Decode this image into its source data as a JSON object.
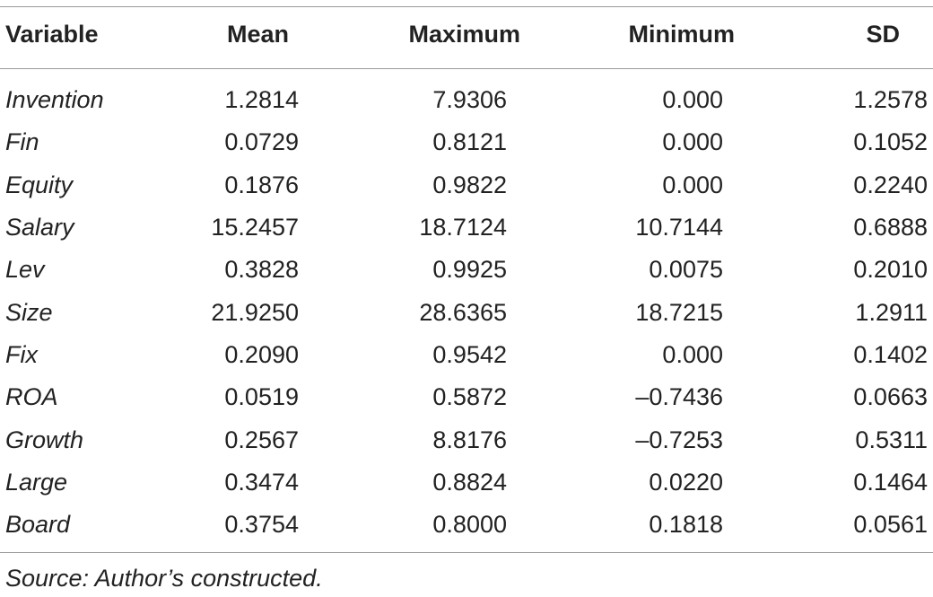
{
  "table": {
    "headers": {
      "variable": "Variable",
      "mean": "Mean",
      "maximum": "Maximum",
      "minimum": "Minimum",
      "sd": "SD"
    },
    "rows": [
      {
        "variable": "Invention",
        "mean": "1.2814",
        "maximum": "7.9306",
        "minimum": "0.000",
        "sd": "1.2578"
      },
      {
        "variable": "Fin",
        "mean": "0.0729",
        "maximum": "0.8121",
        "minimum": "0.000",
        "sd": "0.1052"
      },
      {
        "variable": "Equity",
        "mean": "0.1876",
        "maximum": "0.9822",
        "minimum": "0.000",
        "sd": "0.2240"
      },
      {
        "variable": "Salary",
        "mean": "15.2457",
        "maximum": "18.7124",
        "minimum": "10.7144",
        "sd": "0.6888"
      },
      {
        "variable": "Lev",
        "mean": "0.3828",
        "maximum": "0.9925",
        "minimum": "0.0075",
        "sd": "0.2010"
      },
      {
        "variable": "Size",
        "mean": "21.9250",
        "maximum": "28.6365",
        "minimum": "18.7215",
        "sd": "1.2911"
      },
      {
        "variable": "Fix",
        "mean": "0.2090",
        "maximum": "0.9542",
        "minimum": "0.000",
        "sd": "0.1402"
      },
      {
        "variable": "ROA",
        "mean": "0.0519",
        "maximum": "0.5872",
        "minimum": "–0.7436",
        "sd": "0.0663"
      },
      {
        "variable": "Growth",
        "mean": "0.2567",
        "maximum": "8.8176",
        "minimum": "–0.7253",
        "sd": "0.5311"
      },
      {
        "variable": "Large",
        "mean": "0.3474",
        "maximum": "0.8824",
        "minimum": "0.0220",
        "sd": "0.1464"
      },
      {
        "variable": "Board",
        "mean": "0.3754",
        "maximum": "0.8000",
        "minimum": "0.1818",
        "sd": "0.0561"
      }
    ],
    "source": "Source: Author’s constructed."
  }
}
